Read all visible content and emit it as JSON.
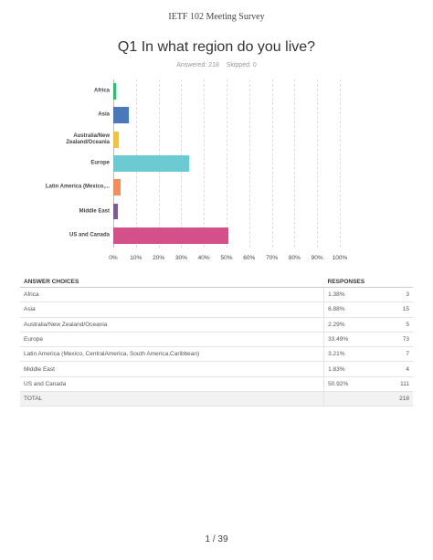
{
  "header": {
    "title": "IETF 102 Meeting Survey"
  },
  "question": {
    "title": "Q1 In what region do you live?",
    "answered": "Answered: 218",
    "skipped": "Skipped: 0"
  },
  "chart_data": {
    "type": "bar",
    "orientation": "horizontal",
    "categories": [
      "Africa",
      "Asia",
      "Australia/New Zealand/Oceania",
      "Europe",
      "Latin America (Mexico,...",
      "Middle East",
      "US and Canada"
    ],
    "values": [
      1.38,
      6.88,
      2.29,
      33.49,
      3.21,
      1.83,
      50.92
    ],
    "colors": [
      "#2dbd6e",
      "#4a78b8",
      "#f3c13a",
      "#6ccbd2",
      "#f58c5b",
      "#7b5d94",
      "#d4508a"
    ],
    "xlim": [
      0,
      100
    ],
    "xticks": [
      {
        "value": 0,
        "label": "0%"
      },
      {
        "value": 10,
        "label": "10%"
      },
      {
        "value": 20,
        "label": "20%"
      },
      {
        "value": 30,
        "label": "30%"
      },
      {
        "value": 40,
        "label": "40%"
      },
      {
        "value": 50,
        "label": "50%"
      },
      {
        "value": 60,
        "label": "60%"
      },
      {
        "value": 70,
        "label": "70%"
      },
      {
        "value": 80,
        "label": "80%"
      },
      {
        "value": 90,
        "label": "90%"
      },
      {
        "value": 100,
        "label": "100%"
      }
    ],
    "grid": true
  },
  "table": {
    "headers": [
      "ANSWER CHOICES",
      "RESPONSES"
    ],
    "rows": [
      [
        "Africa",
        "1.38%",
        3
      ],
      [
        "Asia",
        "6.88%",
        15
      ],
      [
        "Australia/New Zealand/Oceania",
        "2.29%",
        5
      ],
      [
        "Europe",
        "33.49%",
        73
      ],
      [
        "Latin America (Mexico, CentralAmerica, South America,Caribbean)",
        "3.21%",
        7
      ],
      [
        "Middle East",
        "1.83%",
        4
      ],
      [
        "US and Canada",
        "50.92%",
        111
      ]
    ],
    "total": [
      "TOTAL",
      218
    ]
  },
  "footer": {
    "page": "1 / 39"
  }
}
